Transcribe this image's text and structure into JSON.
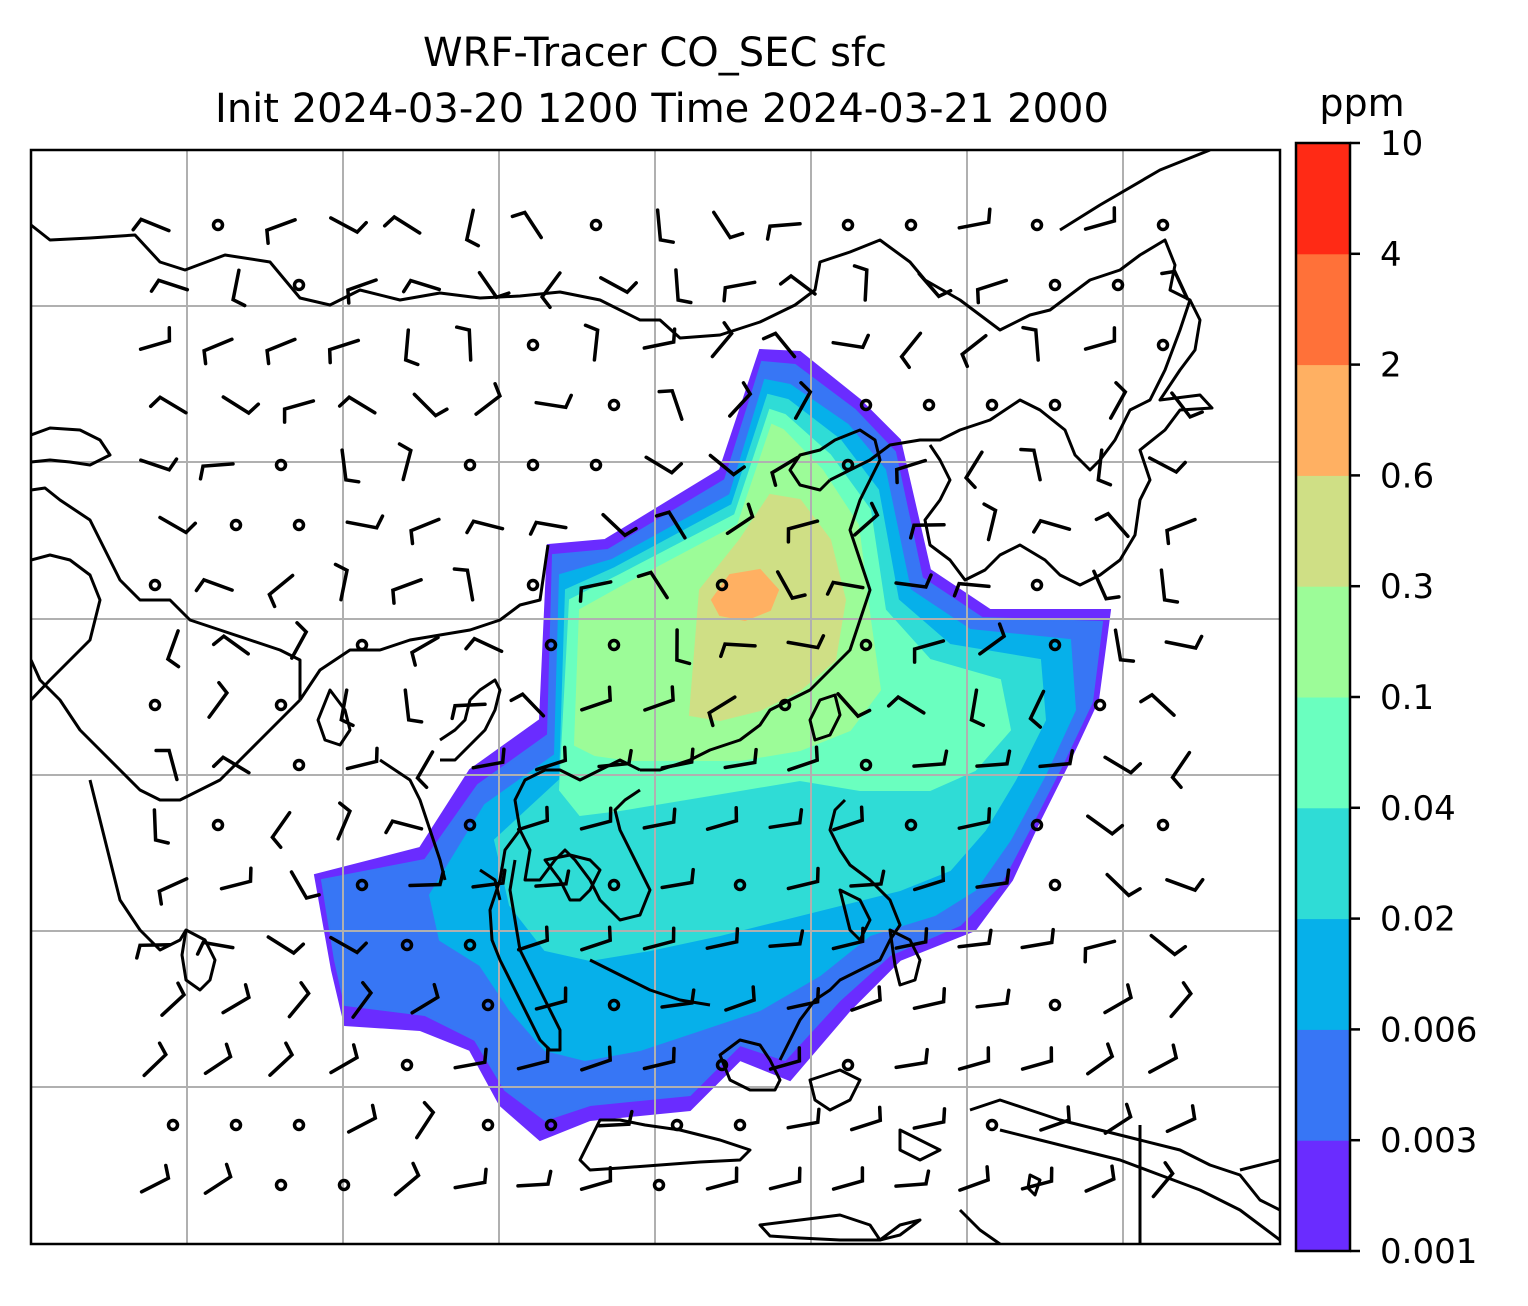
{
  "title": {
    "line1": "WRF-Tracer CO_SEC sfc",
    "line2": "Init 2024-03-20 1200 Time 2024-03-21 2000"
  },
  "colorbar": {
    "units": "ppm",
    "levels": [
      "0.001",
      "0.003",
      "0.006",
      "0.02",
      "0.04",
      "0.1",
      "0.3",
      "0.6",
      "2",
      "4",
      "10"
    ],
    "colors": [
      "#6a2cff",
      "#3776f5",
      "#06b0ea",
      "#2fdcd6",
      "#6affbf",
      "#9cfc98",
      "#cfdf85",
      "#ffb062",
      "#ff7139",
      "#ff2a15"
    ]
  },
  "map": {
    "gridlines": true,
    "wind_barbs": true,
    "coastlines": true
  }
}
